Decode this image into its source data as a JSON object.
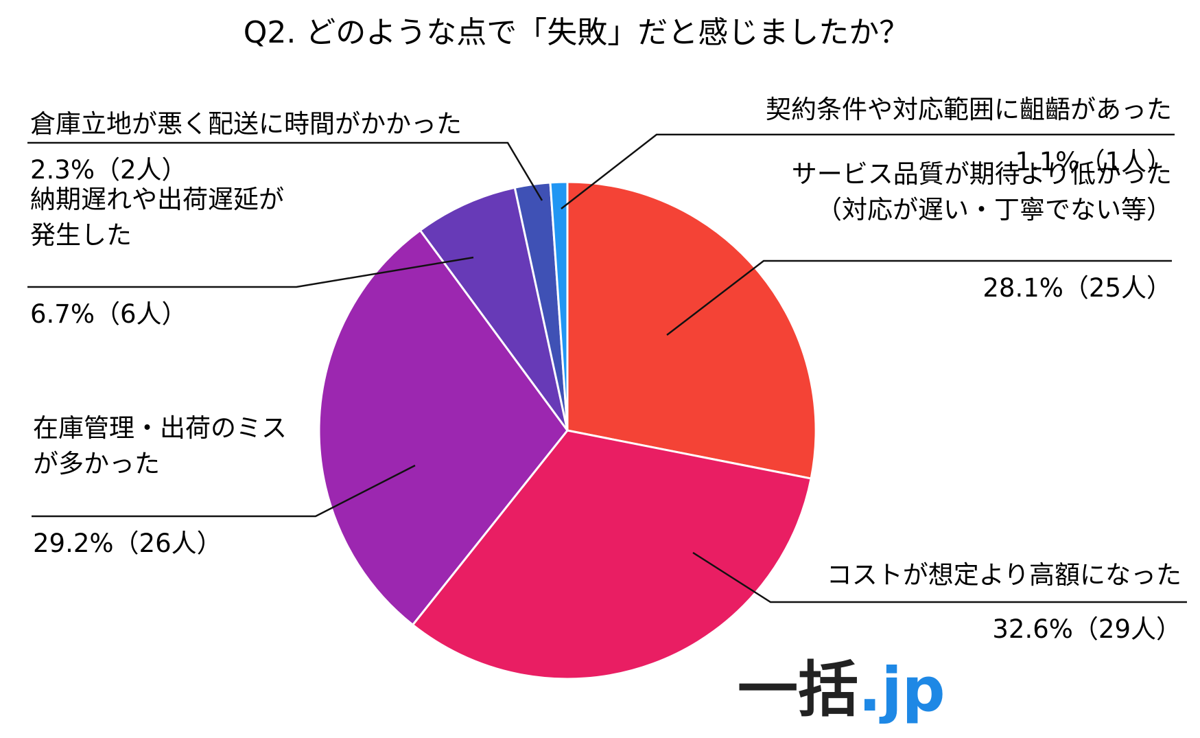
{
  "chart_data": {
    "type": "pie",
    "title": "Q2. どのような点で「失敗」だと感じましたか？",
    "slices": [
      {
        "label_lines": [
          "サービス品質が期待より低かった",
          "（対応が遅い・丁寧でない等）"
        ],
        "value_text": "28.1%（25人）",
        "percent": 28.1,
        "count": 25,
        "color": "#f44336"
      },
      {
        "label_lines": [
          "コストが想定より高額になった"
        ],
        "value_text": "32.6%（29人）",
        "percent": 32.6,
        "count": 29,
        "color": "#e91e63"
      },
      {
        "label_lines": [
          "在庫管理・出荷のミス",
          "が多かった"
        ],
        "value_text": "29.2%（26人）",
        "percent": 29.2,
        "count": 26,
        "color": "#9c27b0"
      },
      {
        "label_lines": [
          "納期遅れや出荷遅延が",
          "発生した"
        ],
        "value_text": "6.7%（6人）",
        "percent": 6.7,
        "count": 6,
        "color": "#673ab7"
      },
      {
        "label_lines": [
          "倉庫立地が悪く配送に時間がかかった"
        ],
        "value_text": "2.3%（2人）",
        "percent": 2.3,
        "count": 2,
        "color": "#3f51b5"
      },
      {
        "label_lines": [
          "契約条件や対応範囲に齟齬があった"
        ],
        "value_text": "1.1%（1人）",
        "percent": 1.1,
        "count": 1,
        "color": "#2196f3"
      }
    ]
  },
  "logo": {
    "text_main": "一括",
    "text_suffix": ".jp",
    "main_color": "#222222",
    "suffix_color": "#1e88e5"
  }
}
